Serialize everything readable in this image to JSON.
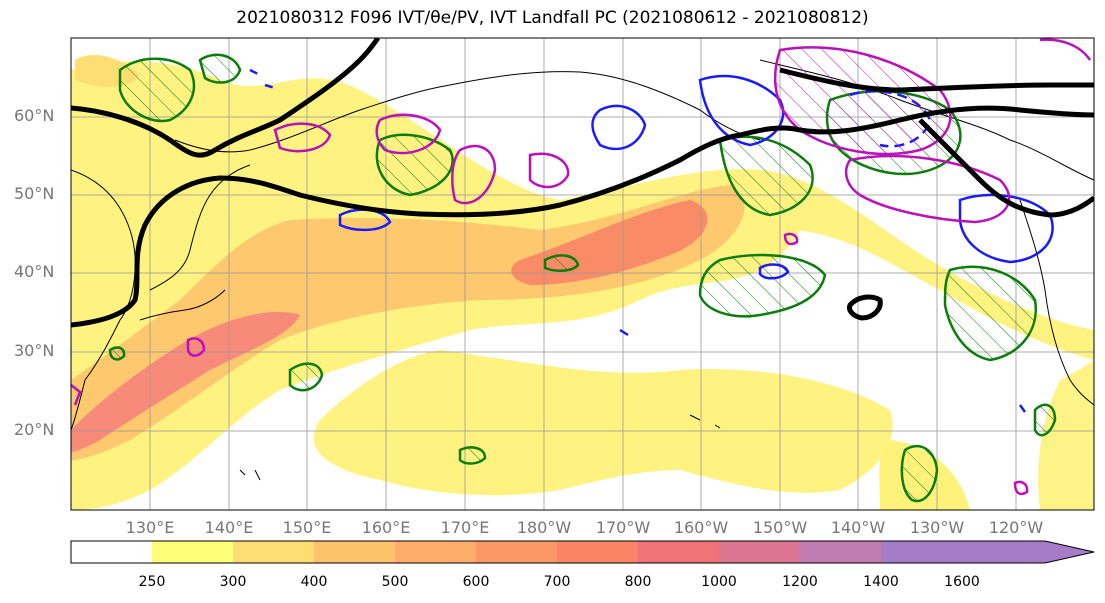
{
  "title": "2021080312 F096 IVT/θe/PV, IVT Landfall PC (2021080612 - 2021080812)",
  "lat_labels": [
    "60°N",
    "50°N",
    "40°N",
    "30°N",
    "20°N"
  ],
  "lon_labels": [
    "130°E",
    "140°E",
    "150°E",
    "160°E",
    "170°E",
    "180°W",
    "170°W",
    "160°W",
    "150°W",
    "140°W",
    "130°W",
    "120°W"
  ],
  "colorbar": {
    "ticks": [
      "250",
      "300",
      "400",
      "500",
      "600",
      "700",
      "800",
      "1000",
      "1200",
      "1400",
      "1600"
    ],
    "colors": [
      "#ffffff",
      "#fefe7a",
      "#fede72",
      "#fdc36b",
      "#fcad6a",
      "#fb9866",
      "#f98466",
      "#ef7478",
      "#dc7591",
      "#c07bb0",
      "#a67cc8"
    ]
  },
  "contour_colors": {
    "ivt_fill_low": "#fef27a",
    "ivt_fill_high": "#f7837a",
    "theta_e": "#000000",
    "pv_pos": "#0a7d0a",
    "pv_neg": "#1a1aff",
    "pc": "#bb11bb"
  }
}
